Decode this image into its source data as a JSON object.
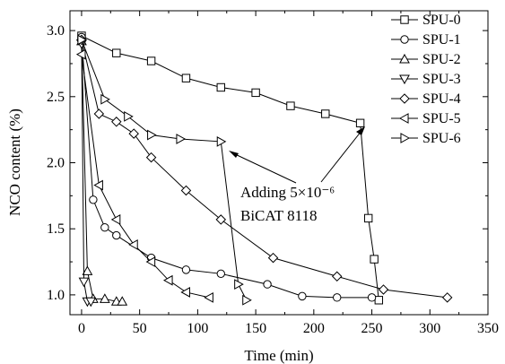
{
  "chart_data": {
    "type": "line",
    "title": "",
    "xlabel": "Time (min)",
    "ylabel": "NCO content (%)",
    "xlim": [
      -10,
      350
    ],
    "ylim": [
      0.85,
      3.15
    ],
    "xticks": [
      0,
      50,
      100,
      150,
      200,
      250,
      300,
      350
    ],
    "yticks": [
      1.0,
      1.5,
      2.0,
      2.5,
      3.0
    ],
    "xtick_labels": [
      "0",
      "50",
      "100",
      "150",
      "200",
      "250",
      "300",
      "350"
    ],
    "ytick_labels": [
      "1.0",
      "1.5",
      "2.0",
      "2.5",
      "3.0"
    ],
    "grid": false,
    "legend_position": "top-right",
    "series": [
      {
        "name": "SPU-0",
        "marker": "square",
        "x": [
          0,
          30,
          60,
          90,
          120,
          150,
          180,
          210,
          240,
          247,
          252,
          256
        ],
        "y": [
          2.96,
          2.83,
          2.77,
          2.64,
          2.57,
          2.53,
          2.43,
          2.37,
          2.3,
          1.58,
          1.27,
          0.96
        ]
      },
      {
        "name": "SPU-1",
        "marker": "circle",
        "x": [
          0,
          10,
          20,
          30,
          60,
          90,
          120,
          160,
          190,
          220,
          250
        ],
        "y": [
          2.95,
          1.72,
          1.51,
          1.45,
          1.28,
          1.19,
          1.16,
          1.08,
          0.99,
          0.98,
          0.98
        ]
      },
      {
        "name": "SPU-2",
        "marker": "triangle-up",
        "x": [
          0,
          5,
          10,
          20,
          30,
          35
        ],
        "y": [
          2.92,
          1.18,
          0.97,
          0.97,
          0.95,
          0.95
        ]
      },
      {
        "name": "SPU-3",
        "marker": "triangle-down",
        "x": [
          0,
          2,
          5,
          8
        ],
        "y": [
          2.9,
          1.1,
          0.95,
          0.95
        ]
      },
      {
        "name": "SPU-4",
        "marker": "diamond",
        "x": [
          0,
          15,
          30,
          45,
          60,
          90,
          120,
          165,
          220,
          260,
          315
        ],
        "y": [
          2.93,
          2.37,
          2.31,
          2.22,
          2.04,
          1.79,
          1.57,
          1.28,
          1.14,
          1.04,
          0.98
        ]
      },
      {
        "name": "SPU-5",
        "marker": "triangle-left",
        "x": [
          0,
          15,
          30,
          45,
          60,
          75,
          90,
          110
        ],
        "y": [
          2.82,
          1.83,
          1.57,
          1.38,
          1.25,
          1.11,
          1.02,
          0.98
        ]
      },
      {
        "name": "SPU-6",
        "marker": "triangle-right",
        "x": [
          0,
          20,
          40,
          60,
          85,
          120,
          135,
          142
        ],
        "y": [
          2.93,
          2.48,
          2.35,
          2.21,
          2.18,
          2.16,
          1.08,
          0.96
        ]
      }
    ],
    "annotation": {
      "line1": "Adding 5×10⁻⁶",
      "line2": "BiCAT 8118"
    }
  }
}
